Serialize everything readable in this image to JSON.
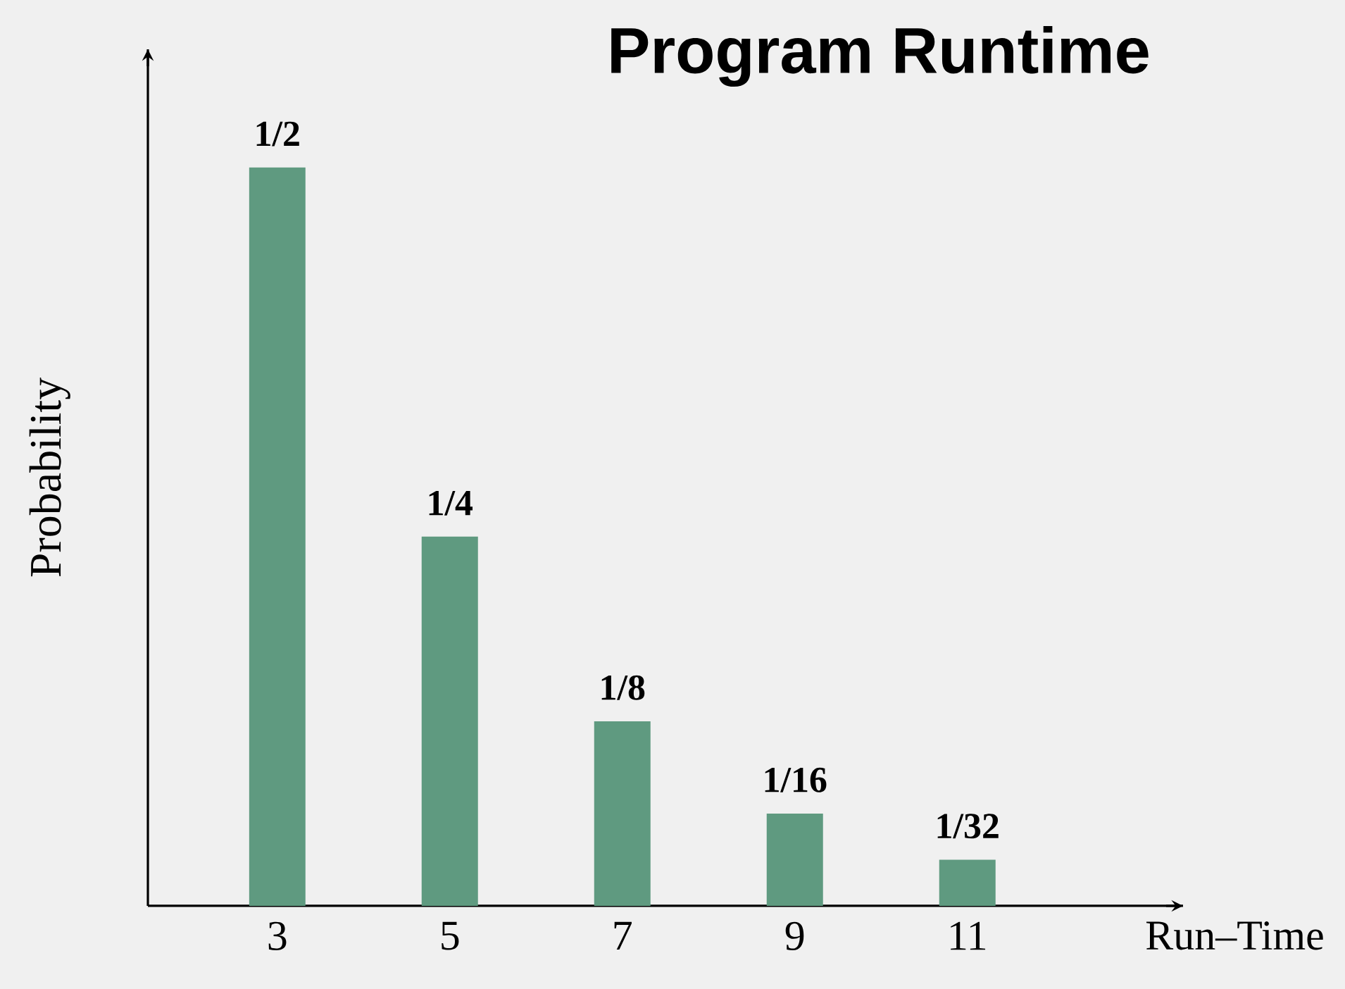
{
  "chart_data": {
    "type": "bar",
    "title": "Program Runtime",
    "xlabel": "Run–Time",
    "ylabel": "Probability",
    "x": [
      3,
      5,
      7,
      9,
      11
    ],
    "values": [
      0.5,
      0.25,
      0.125,
      0.0625,
      0.03125
    ],
    "value_labels": [
      "1/2",
      "1/4",
      "1/8",
      "1/16",
      "1/32"
    ],
    "color": "#5f9a80",
    "xlim": [
      1.5,
      13.5
    ],
    "xticks": [
      3,
      5,
      7,
      9,
      11
    ],
    "tick_labels": "x",
    "grid": false
  }
}
